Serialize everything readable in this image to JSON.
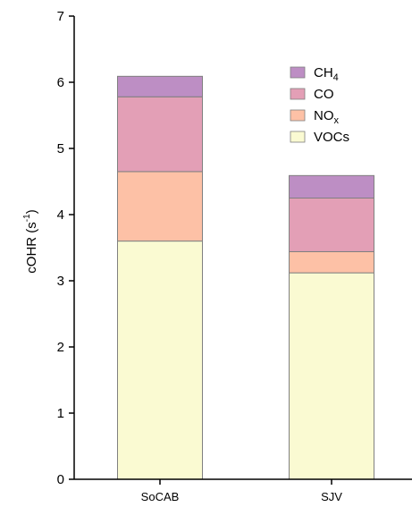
{
  "chart_data": {
    "type": "bar",
    "stacked": true,
    "categories": [
      "SoCAB",
      "SJV"
    ],
    "series": [
      {
        "name": "VOCs",
        "values": [
          3.6,
          3.12
        ],
        "color": "#fafad2"
      },
      {
        "name": "NOx",
        "values": [
          1.05,
          0.32
        ],
        "color": "#fdc1a6"
      },
      {
        "name": "CO",
        "values": [
          1.13,
          0.81
        ],
        "color": "#e39fb6"
      },
      {
        "name": "CH4",
        "values": [
          0.31,
          0.34
        ],
        "color": "#bd8ec4"
      }
    ],
    "legend_order": [
      "CH4",
      "CO",
      "NOx",
      "VOCs"
    ],
    "legend_labels": {
      "CH4": {
        "base": "CH",
        "sub": "4"
      },
      "CO": {
        "base": "CO",
        "sub": ""
      },
      "NOx": {
        "base": "NO",
        "sub": "x"
      },
      "VOCs": {
        "base": "VOCs",
        "sub": ""
      }
    },
    "ylabel": {
      "base": "cOHR (s",
      "sup": "-1",
      "tail": ")"
    },
    "xlabel": "",
    "title": "",
    "ylim": [
      0,
      7
    ],
    "yticks": [
      0,
      1,
      2,
      3,
      4,
      5,
      6,
      7
    ],
    "grid": false,
    "legend_position": "top-right"
  }
}
